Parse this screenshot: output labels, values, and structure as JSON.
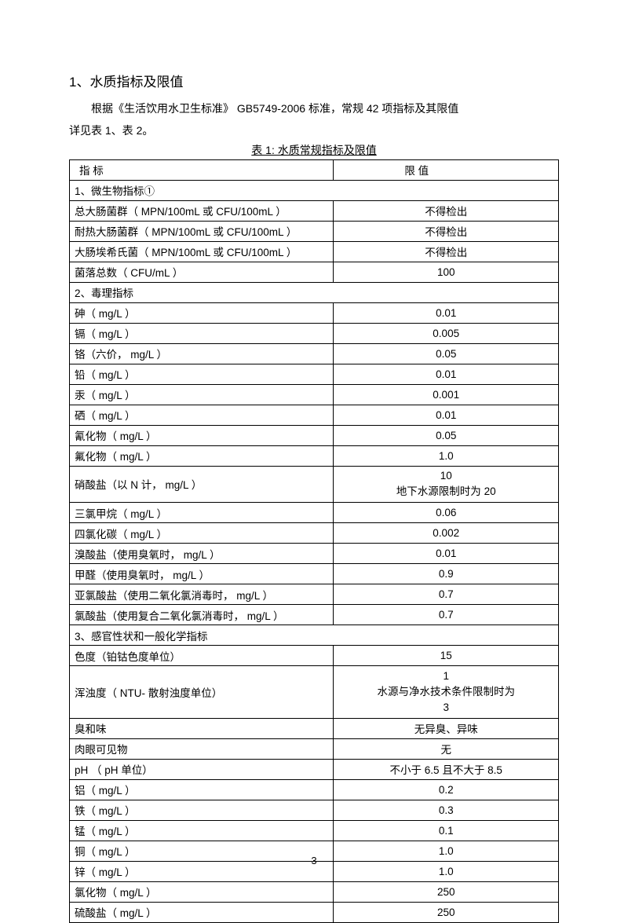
{
  "heading": "1、水质指标及限值",
  "intro_line1": "根据《生活饮用水卫生标准》  GB5749-2006 标准，常规 42  项指标及其限值",
  "intro_line2": "详见表 1、表 2。",
  "table_caption": "表 1:  水质常规指标及限值",
  "header_indicator": "指 标",
  "header_value": "限   值",
  "section1": "1、微生物指标①",
  "section2": "2、毒理指标",
  "section3": "3、感官性状和一般化学指标",
  "rows": {
    "r1": {
      "k": "总大肠菌群（ MPN/100mL  或 CFU/100mL ）",
      "v": "不得检出"
    },
    "r2": {
      "k": "耐热大肠菌群（ MPN/100mL  或 CFU/100mL ）",
      "v": "不得检出"
    },
    "r3": {
      "k": "大肠埃希氏菌（ MPN/100mL  或 CFU/100mL ）",
      "v": "不得检出"
    },
    "r4": {
      "k": "菌落总数（ CFU/mL ）",
      "v": "100"
    },
    "r5": {
      "k": "砷（ mg/L ）",
      "v": "0.01"
    },
    "r6": {
      "k": "镉（ mg/L ）",
      "v": "0.005"
    },
    "r7": {
      "k": "铬（六价， mg/L ）",
      "v": "0.05"
    },
    "r8": {
      "k": "铅（ mg/L ）",
      "v": "0.01"
    },
    "r9": {
      "k": "汞（ mg/L ）",
      "v": "0.001"
    },
    "r10": {
      "k": "硒（ mg/L ）",
      "v": "0.01"
    },
    "r11": {
      "k": "氰化物（ mg/L ）",
      "v": "0.05"
    },
    "r12": {
      "k": "氟化物（ mg/L ）",
      "v": "1.0"
    },
    "r13": {
      "k": "硝酸盐（以  N 计， mg/L ）",
      "v1": "10",
      "v2": "地下水源限制时为    20"
    },
    "r14": {
      "k": "三氯甲烷（ mg/L ）",
      "v": "0.06"
    },
    "r15": {
      "k": "四氯化碳（ mg/L ）",
      "v": "0.002"
    },
    "r16": {
      "k": "溴酸盐（使用臭氧时，  mg/L ）",
      "v": "0.01"
    },
    "r17": {
      "k": "甲醛（使用臭氧时，  mg/L ）",
      "v": "0.9"
    },
    "r18": {
      "k": "亚氯酸盐（使用二氧化氯消毒时，   mg/L ）",
      "v": "0.7"
    },
    "r19": {
      "k": "氯酸盐（使用复合二氧化氯消毒时，    mg/L ）",
      "v": "0.7"
    },
    "r20": {
      "k": "色度（铂钴色度单位）",
      "v": "15"
    },
    "r21": {
      "k": "浑浊度（ NTU- 散射浊度单位）",
      "v1": "1",
      "v2": "水源与净水技术条件限制时为",
      "v3": "3"
    },
    "r22": {
      "k": "臭和味",
      "v": "无异臭、异味"
    },
    "r23": {
      "k": "肉眼可见物",
      "v": "无"
    },
    "r24": {
      "k": "pH （ pH 单位）",
      "v": "不小于  6.5 且不大于  8.5"
    },
    "r25": {
      "k": "铝（ mg/L ）",
      "v": "0.2"
    },
    "r26": {
      "k": "铁（ mg/L ）",
      "v": "0.3"
    },
    "r27": {
      "k": "锰（ mg/L ）",
      "v": "0.1"
    },
    "r28": {
      "k": "铜（ mg/L ）",
      "v": "1.0"
    },
    "r29": {
      "k": "锌（ mg/L ）",
      "v": "1.0"
    },
    "r30": {
      "k": "氯化物（ mg/L ）",
      "v": "250"
    },
    "r31": {
      "k": "硫酸盐（ mg/L ）",
      "v": "250"
    }
  },
  "page_number": "3"
}
